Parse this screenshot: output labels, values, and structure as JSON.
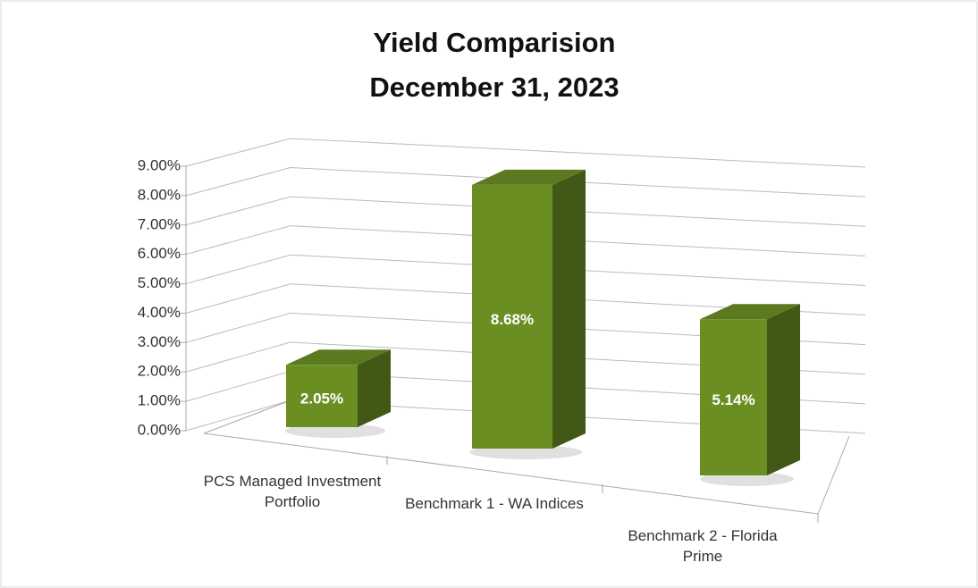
{
  "chart_data": {
    "type": "bar3d",
    "title": "Yield Comparision",
    "subtitle": "December 31, 2023",
    "categories": [
      "PCS Managed Investment Portfolio",
      "Benchmark 1 - WA Indices",
      "Benchmark 2 - Florida Prime"
    ],
    "values": [
      2.05,
      8.68,
      5.14
    ],
    "value_labels": [
      "2.05%",
      "8.68%",
      "5.14%"
    ],
    "color": "#6b8e23",
    "ylim": [
      0,
      9
    ],
    "yticks": [
      {
        "value": 0,
        "label": "0.00%"
      },
      {
        "value": 1,
        "label": "1.00%"
      },
      {
        "value": 2,
        "label": "2.00%"
      },
      {
        "value": 3,
        "label": "3.00%"
      },
      {
        "value": 4,
        "label": "4.00%"
      },
      {
        "value": 5,
        "label": "5.00%"
      },
      {
        "value": 6,
        "label": "6.00%"
      },
      {
        "value": 7,
        "label": "7.00%"
      },
      {
        "value": 8,
        "label": "8.00%"
      },
      {
        "value": 9,
        "label": "9.00%"
      }
    ],
    "grid": true
  }
}
